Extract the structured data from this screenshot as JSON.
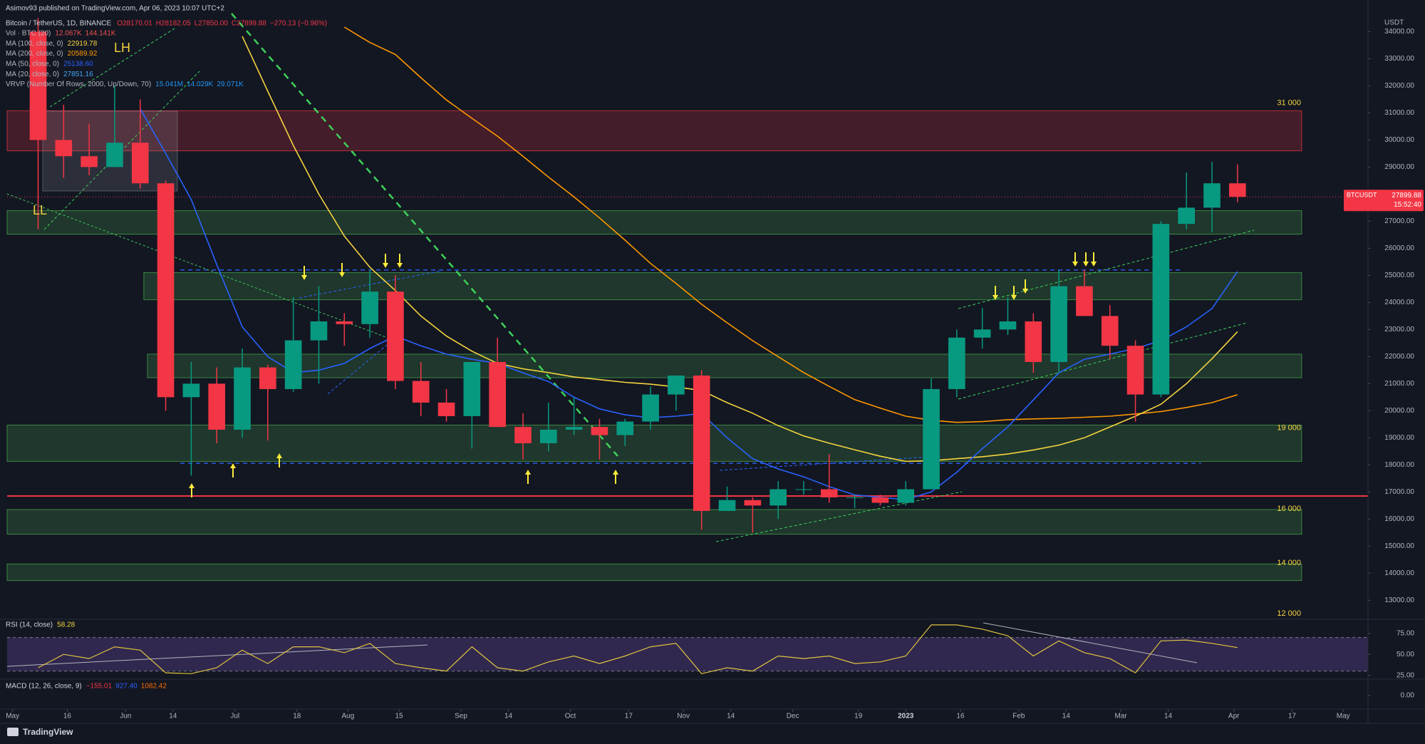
{
  "header": "Asimov93 published on TradingView.com, Apr 06, 2023 10:07 UTC+2",
  "footer": "TradingView",
  "chart_data": [
    {
      "type": "candlestick",
      "title": "Bitcoin / TetherUS, 1D, BINANCE",
      "ohlc_text": [
        "O28170.01",
        "H28182.05",
        "L27850.00",
        "C27899.88",
        "−270.13 (−0.96%)"
      ],
      "studies": [
        {
          "name": "Vol · BTC (20)",
          "readout": [
            "12.067K",
            "144.141K"
          ],
          "color": "#ef5350"
        },
        {
          "name": "MA (100, close, 0)",
          "readout": [
            "22919.78"
          ],
          "color": "#f5d33f"
        },
        {
          "name": "MA (200, close, 0)",
          "readout": [
            "20589.92"
          ],
          "color": "#ff9800"
        },
        {
          "name": "MA (50, close, 0)",
          "readout": [
            "25138.60"
          ],
          "color": "#2962ff"
        },
        {
          "name": "MA (20, close, 0)",
          "readout": [
            "27851.16"
          ],
          "color": "#42a5f5"
        },
        {
          "name": "VRVP (Number Of Rows, 2000, Up/Down, 70)",
          "readout": [
            "15.041M",
            "14.029K",
            "29.071K"
          ],
          "color": "#2196f3"
        }
      ],
      "axis_unit": "USDT",
      "symbol": "BTCUSDT",
      "last_price": 27899.88,
      "countdown": "15:52:40",
      "up_color": "#089981",
      "down_color": "#f23645",
      "x": [
        7,
        14,
        21,
        28,
        35,
        42,
        49,
        56,
        63,
        70,
        77,
        84,
        91,
        98,
        105,
        112,
        119,
        126,
        133,
        140,
        147,
        154,
        161,
        168,
        175,
        182,
        189,
        196,
        203,
        210,
        217,
        224,
        231,
        238,
        245,
        252,
        259,
        266,
        273,
        280,
        287,
        294,
        301,
        308,
        315,
        322,
        329,
        336
      ],
      "open": [
        34000,
        30000,
        29400,
        29000,
        29900,
        28400,
        20500,
        21000,
        19300,
        21600,
        20800,
        22600,
        23300,
        23200,
        24400,
        21100,
        20300,
        19800,
        21800,
        19400,
        18800,
        19300,
        19400,
        19100,
        19600,
        20600,
        21300,
        16300,
        16700,
        16500,
        17100,
        17100,
        16800,
        16800,
        16600,
        17100,
        20800,
        22700,
        23000,
        23300,
        21800,
        24600,
        23500,
        22400,
        20600,
        26900,
        27500,
        28400
      ],
      "high": [
        34500,
        31300,
        30600,
        32000,
        31500,
        28500,
        21800,
        21600,
        22300,
        21700,
        24200,
        24600,
        23600,
        25200,
        25000,
        21800,
        20800,
        21800,
        22700,
        19900,
        20300,
        20500,
        19700,
        19700,
        20900,
        21300,
        21500,
        17200,
        16800,
        17400,
        17400,
        18400,
        16900,
        16900,
        17400,
        21200,
        23000,
        23800,
        24200,
        23600,
        25200,
        25200,
        23900,
        22600,
        27000,
        28800,
        29200,
        29100
      ],
      "low": [
        26700,
        28600,
        28700,
        29000,
        28200,
        20000,
        17600,
        18800,
        19000,
        18900,
        20700,
        21000,
        22400,
        22700,
        20800,
        19800,
        19600,
        18600,
        19400,
        18200,
        18500,
        19100,
        18200,
        18700,
        19300,
        20000,
        15600,
        16300,
        15500,
        16000,
        16900,
        16600,
        16400,
        16500,
        16500,
        17100,
        20500,
        22300,
        22800,
        21400,
        21400,
        23500,
        21900,
        19600,
        20500,
        26700,
        26600,
        27700
      ],
      "close": [
        30000,
        29400,
        29000,
        29900,
        28400,
        20500,
        21000,
        19300,
        21600,
        20800,
        22600,
        23300,
        23200,
        24400,
        21100,
        20300,
        19800,
        21800,
        19400,
        18800,
        19300,
        19400,
        19100,
        19600,
        20600,
        21300,
        16300,
        16700,
        16500,
        17100,
        17100,
        16800,
        16800,
        16600,
        17100,
        20800,
        22700,
        23000,
        23300,
        21800,
        24600,
        23500,
        22400,
        20600,
        26900,
        27500,
        28400,
        27900
      ],
      "series": [
        {
          "name": "MA (200, close, 0)",
          "color": "#ff9800",
          "values": [
            null,
            null,
            null,
            null,
            null,
            null,
            null,
            null,
            null,
            null,
            null,
            null,
            34170,
            33600,
            33160,
            32300,
            31480,
            30800,
            30140,
            29400,
            28630,
            27900,
            27120,
            26300,
            25440,
            24700,
            23930,
            23250,
            22590,
            22000,
            21410,
            20900,
            20410,
            20100,
            19800,
            19650,
            19570,
            19600,
            19670,
            19700,
            19720,
            19760,
            19800,
            19880,
            19970,
            20120,
            20300,
            20590
          ]
        },
        {
          "name": "MA (100, close, 0)",
          "color": "#f5d33f",
          "values": [
            null,
            null,
            null,
            null,
            null,
            null,
            null,
            null,
            33830,
            31800,
            29800,
            28000,
            26450,
            25300,
            24440,
            23500,
            22760,
            22200,
            21750,
            21550,
            21410,
            21250,
            21150,
            21050,
            20980,
            20880,
            20750,
            20300,
            19910,
            19450,
            19070,
            18800,
            18560,
            18320,
            18130,
            18150,
            18230,
            18300,
            18400,
            18550,
            18730,
            19000,
            19400,
            19800,
            20240,
            21000,
            21920,
            22920
          ]
        },
        {
          "name": "MA (50, close, 0)",
          "color": "#2962ff",
          "values": [
            null,
            null,
            null,
            null,
            31150,
            29500,
            27800,
            25400,
            23100,
            22000,
            21410,
            21500,
            21750,
            22300,
            22760,
            22400,
            22090,
            21900,
            21750,
            21400,
            21080,
            20500,
            20070,
            19850,
            19740,
            19800,
            19900,
            19000,
            18230,
            17850,
            17560,
            17200,
            16890,
            16800,
            16720,
            17000,
            17730,
            18600,
            19400,
            20400,
            21400,
            21900,
            22090,
            22300,
            22590,
            23100,
            23770,
            25140
          ]
        }
      ],
      "zones": [
        {
          "from": 29600,
          "to": 31080,
          "x": [
            -1.5,
            353.6
          ],
          "color": "#f23645"
        },
        {
          "from": 26520,
          "to": 27390,
          "x": [
            -1.5,
            353.6
          ],
          "color": "#4caf50"
        },
        {
          "from": 24100,
          "to": 25100,
          "x": [
            36,
            353.6
          ],
          "color": "#4caf50"
        },
        {
          "from": 21220,
          "to": 22090,
          "x": [
            37,
            353.6
          ],
          "color": "#4caf50"
        },
        {
          "from": 18130,
          "to": 19470,
          "x": [
            -1.5,
            353.6
          ],
          "color": "#4caf50"
        },
        {
          "from": 15440,
          "to": 16350,
          "x": [
            -1.5,
            353.6
          ],
          "color": "#4caf50"
        },
        {
          "from": 13730,
          "to": 14340,
          "x": [
            -1.5,
            353.6
          ],
          "color": "#4caf50"
        }
      ],
      "levels": [
        {
          "value": 16850,
          "x": [
            -1.5,
            371.8
          ],
          "color": "#f23645",
          "dashed": false
        },
        {
          "value": 25200,
          "x": [
            46,
            321
          ],
          "color": "#2962ff",
          "dashed": true
        },
        {
          "value": 18060,
          "x": [
            46,
            326
          ],
          "color": "#2962ff",
          "dashed": true
        }
      ],
      "price_labels": [
        {
          "value": 31000,
          "label": "31 000"
        },
        {
          "value": 19000,
          "label": "19 000"
        },
        {
          "value": 16000,
          "label": "16 000"
        },
        {
          "value": 14000,
          "label": "14 000"
        },
        {
          "value": 12000,
          "label": "12 000"
        }
      ],
      "annotations": [
        "LH",
        "LL"
      ],
      "xlim": [
        -1.5,
        371.8
      ],
      "xticks": [
        {
          "value": 0,
          "label": "May"
        },
        {
          "value": 15,
          "label": "16"
        },
        {
          "value": 31,
          "label": "Jun"
        },
        {
          "value": 44,
          "label": "14"
        },
        {
          "value": 61,
          "label": "Jul"
        },
        {
          "value": 78,
          "label": "18"
        },
        {
          "value": 92,
          "label": "Aug"
        },
        {
          "value": 106,
          "label": "15"
        },
        {
          "value": 123,
          "label": "Sep"
        },
        {
          "value": 136,
          "label": "14"
        },
        {
          "value": 153,
          "label": "Oct"
        },
        {
          "value": 169,
          "label": "17"
        },
        {
          "value": 184,
          "label": "Nov"
        },
        {
          "value": 197,
          "label": "14"
        },
        {
          "value": 214,
          "label": "Dec"
        },
        {
          "value": 232,
          "label": "19"
        },
        {
          "value": 245,
          "label": "2023"
        },
        {
          "value": 260,
          "label": "16"
        },
        {
          "value": 276,
          "label": "Feb"
        },
        {
          "value": 289,
          "label": "14"
        },
        {
          "value": 304,
          "label": "Mar"
        },
        {
          "value": 317,
          "label": "14"
        },
        {
          "value": 335,
          "label": "Apr"
        },
        {
          "value": 351,
          "label": "17"
        },
        {
          "value": 365,
          "label": "May"
        }
      ],
      "ylim": [
        12350,
        35170
      ],
      "yticks": [
        {
          "value": 34000,
          "label": "34000.00"
        },
        {
          "value": 33000,
          "label": "33000.00"
        },
        {
          "value": 32000,
          "label": "32000.00"
        },
        {
          "value": 31000,
          "label": "31000.00"
        },
        {
          "value": 30000,
          "label": "30000.00"
        },
        {
          "value": 29000,
          "label": "29000.00"
        },
        {
          "value": 28000,
          "label": "28000.00"
        },
        {
          "value": 27000,
          "label": "27000.00"
        },
        {
          "value": 26000,
          "label": "26000.00"
        },
        {
          "value": 25000,
          "label": "25000.00"
        },
        {
          "value": 24000,
          "label": "24000.00"
        },
        {
          "value": 23000,
          "label": "23000.00"
        },
        {
          "value": 22000,
          "label": "22000.00"
        },
        {
          "value": 21000,
          "label": "21000.00"
        },
        {
          "value": 20000,
          "label": "20000.00"
        },
        {
          "value": 19000,
          "label": "19000.00"
        },
        {
          "value": 18000,
          "label": "18000.00"
        },
        {
          "value": 17000,
          "label": "17000.00"
        },
        {
          "value": 16000,
          "label": "16000.00"
        },
        {
          "value": 15000,
          "label": "15000.00"
        },
        {
          "value": 14000,
          "label": "14000.00"
        },
        {
          "value": 13000,
          "label": "13000.00"
        }
      ],
      "grid": false
    },
    {
      "type": "line",
      "title": "RSI (14, close)",
      "readout": "58.28",
      "band": [
        30,
        70
      ],
      "x": [
        7,
        14,
        21,
        28,
        35,
        42,
        49,
        56,
        63,
        70,
        77,
        84,
        91,
        98,
        105,
        112,
        119,
        126,
        133,
        140,
        147,
        154,
        161,
        168,
        175,
        182,
        189,
        196,
        203,
        210,
        217,
        224,
        231,
        238,
        245,
        252,
        259,
        266,
        273,
        280,
        287,
        294,
        301,
        308,
        315,
        322,
        329,
        336
      ],
      "series": [
        {
          "name": "RSI",
          "color": "#e0c341",
          "values": [
            34,
            50,
            45,
            59,
            55,
            28,
            27,
            34,
            55,
            39,
            59,
            59,
            52,
            63,
            39,
            34,
            30,
            59,
            34,
            30,
            41,
            48,
            39,
            48,
            59,
            63,
            27,
            34,
            30,
            48,
            45,
            48,
            39,
            41,
            48,
            85,
            85,
            80,
            72,
            48,
            66,
            52,
            45,
            28,
            66,
            67,
            63,
            58
          ]
        }
      ],
      "xlim": [
        -1.5,
        371.8
      ],
      "ylim": [
        23,
        90
      ],
      "yticks": [
        {
          "value": 75,
          "label": "75.00"
        },
        {
          "value": 50,
          "label": "50.00"
        },
        {
          "value": 25,
          "label": "25.00"
        }
      ]
    },
    {
      "type": "line",
      "title": "MACD (12, 26, close, 9)",
      "readout": [
        "−155.01",
        "927.40",
        "1082.42"
      ],
      "xlim": [
        -1.5,
        371.8
      ],
      "ylim": [
        -1500,
        1500
      ],
      "yticks": [
        {
          "value": 0,
          "label": "0.00"
        }
      ]
    }
  ]
}
